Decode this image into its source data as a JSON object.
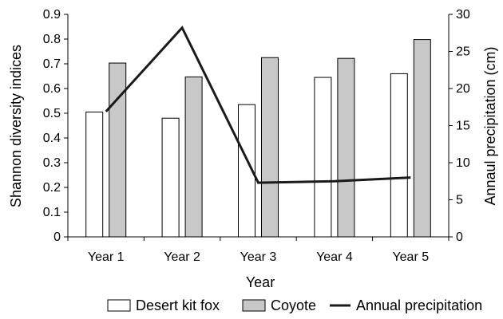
{
  "chart_data": {
    "type": "bar",
    "categories": [
      "Year 1",
      "Year 2",
      "Year 3",
      "Year 4",
      "Year 5"
    ],
    "series": [
      {
        "name": "Desert kit fox",
        "type": "bar",
        "axis": "left",
        "values": [
          0.505,
          0.48,
          0.535,
          0.645,
          0.66
        ],
        "color": "#ffffff"
      },
      {
        "name": "Coyote",
        "type": "bar",
        "axis": "left",
        "values": [
          0.703,
          0.647,
          0.725,
          0.722,
          0.798
        ],
        "color": "#c8c8c8"
      },
      {
        "name": "Annual precipitation",
        "type": "line",
        "axis": "right",
        "values": [
          16.9,
          28.2,
          7.3,
          7.5,
          8.0
        ],
        "color": "#1a1a1a"
      }
    ],
    "xlabel": "Year",
    "ylabel": "Shannon diversity indices",
    "y2label": "Annaul precipitation (cm)",
    "ylim": [
      0,
      0.9
    ],
    "y2lim": [
      0,
      30
    ],
    "yticks": [
      "0",
      "0.1",
      "0.2",
      "0.3",
      "0.4",
      "0.5",
      "0.6",
      "0.7",
      "0.8",
      "0.9"
    ],
    "y2ticks": [
      "0",
      "5",
      "10",
      "15",
      "20",
      "25",
      "30"
    ],
    "grid": false,
    "legend_position": "bottom"
  }
}
